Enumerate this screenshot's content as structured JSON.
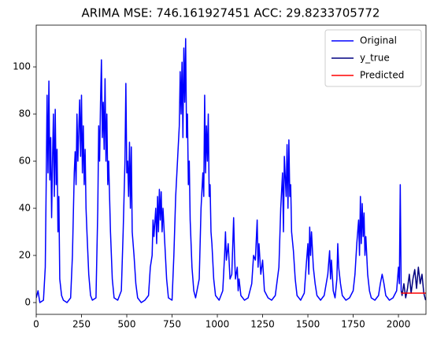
{
  "chart_data": {
    "type": "line",
    "title": "ARIMA MSE: 746.161927451 ACC: 29.8233705772",
    "xlim": [
      0,
      2152
    ],
    "ylim": [
      -5,
      117.7
    ],
    "xticks": [
      0,
      250,
      500,
      750,
      1000,
      1250,
      1500,
      1750,
      2000
    ],
    "yticks": [
      0,
      20,
      40,
      60,
      80,
      100
    ],
    "legend": "upper right",
    "series": [
      {
        "name": "Original",
        "color": "#0000ff",
        "x": [
          0,
          10,
          20,
          40,
          50,
          55,
          60,
          65,
          70,
          75,
          80,
          85,
          90,
          95,
          100,
          105,
          110,
          115,
          120,
          125,
          130,
          140,
          150,
          170,
          190,
          200,
          210,
          215,
          220,
          225,
          230,
          240,
          245,
          250,
          255,
          260,
          265,
          270,
          275,
          280,
          290,
          300,
          310,
          330,
          340,
          345,
          350,
          355,
          360,
          365,
          370,
          375,
          380,
          385,
          390,
          395,
          400,
          410,
          420,
          430,
          450,
          470,
          480,
          490,
          495,
          500,
          505,
          510,
          515,
          520,
          525,
          530,
          540,
          550,
          560,
          580,
          600,
          620,
          630,
          640,
          645,
          650,
          660,
          665,
          670,
          675,
          680,
          685,
          690,
          695,
          700,
          710,
          720,
          730,
          750,
          760,
          770,
          780,
          790,
          795,
          800,
          805,
          810,
          815,
          820,
          825,
          830,
          835,
          840,
          845,
          850,
          860,
          870,
          880,
          900,
          910,
          920,
          925,
          930,
          935,
          940,
          945,
          950,
          955,
          960,
          965,
          970,
          980,
          990,
          1010,
          1030,
          1040,
          1045,
          1050,
          1060,
          1070,
          1080,
          1090,
          1095,
          1100,
          1110,
          1115,
          1120,
          1130,
          1150,
          1170,
          1190,
          1200,
          1210,
          1220,
          1225,
          1230,
          1240,
          1250,
          1260,
          1280,
          1300,
          1320,
          1340,
          1350,
          1360,
          1365,
          1370,
          1380,
          1385,
          1390,
          1395,
          1400,
          1405,
          1410,
          1420,
          1430,
          1440,
          1460,
          1480,
          1490,
          1500,
          1505,
          1510,
          1515,
          1520,
          1530,
          1540,
          1550,
          1570,
          1590,
          1610,
          1620,
          1625,
          1630,
          1640,
          1650,
          1660,
          1665,
          1670,
          1680,
          1690,
          1710,
          1730,
          1750,
          1760,
          1770,
          1780,
          1785,
          1790,
          1795,
          1800,
          1805,
          1810,
          1815,
          1820,
          1830,
          1840,
          1850,
          1870,
          1890,
          1900,
          1910,
          1920,
          1930,
          1950,
          1970,
          1990,
          2000,
          2005,
          2010,
          2015
        ],
        "values": [
          2,
          5,
          0,
          1,
          15,
          50,
          88,
          55,
          94,
          52,
          70,
          36,
          60,
          80,
          45,
          82,
          50,
          65,
          30,
          45,
          10,
          3,
          1,
          0,
          2,
          20,
          55,
          64,
          50,
          80,
          60,
          86,
          62,
          88,
          55,
          75,
          50,
          65,
          40,
          30,
          12,
          3,
          1,
          2,
          40,
          75,
          60,
          85,
          103,
          70,
          85,
          65,
          95,
          60,
          80,
          50,
          60,
          30,
          10,
          2,
          1,
          5,
          30,
          60,
          93,
          55,
          60,
          45,
          68,
          40,
          66,
          30,
          20,
          8,
          2,
          0,
          1,
          3,
          15,
          20,
          35,
          28,
          40,
          25,
          45,
          30,
          48,
          35,
          47,
          30,
          40,
          25,
          10,
          2,
          1,
          20,
          45,
          60,
          75,
          98,
          80,
          102,
          70,
          108,
          85,
          112,
          70,
          80,
          50,
          60,
          35,
          15,
          5,
          2,
          10,
          40,
          55,
          45,
          88,
          55,
          75,
          60,
          80,
          45,
          50,
          30,
          25,
          10,
          3,
          1,
          5,
          20,
          30,
          18,
          25,
          10,
          12,
          36,
          20,
          10,
          15,
          5,
          10,
          3,
          1,
          2,
          8,
          20,
          18,
          35,
          15,
          25,
          12,
          18,
          5,
          2,
          1,
          3,
          15,
          40,
          55,
          30,
          62,
          45,
          67,
          40,
          69,
          45,
          50,
          30,
          22,
          10,
          3,
          1,
          4,
          15,
          25,
          12,
          32,
          20,
          30,
          15,
          8,
          3,
          1,
          3,
          12,
          22,
          10,
          18,
          5,
          2,
          10,
          25,
          15,
          8,
          3,
          1,
          2,
          5,
          12,
          25,
          35,
          20,
          45,
          25,
          42,
          28,
          38,
          20,
          28,
          12,
          5,
          2,
          1,
          3,
          8,
          12,
          8,
          3,
          1,
          2,
          5,
          15,
          8,
          50,
          5
        ]
      },
      {
        "name": "y_true",
        "color": "#000080",
        "x": [
          2015,
          2020,
          2030,
          2040,
          2050,
          2060,
          2070,
          2080,
          2090,
          2100,
          2110,
          2120,
          2130,
          2140,
          2150
        ],
        "values": [
          5,
          3,
          8,
          2,
          6,
          12,
          4,
          10,
          14,
          6,
          15,
          8,
          12,
          4,
          1
        ]
      },
      {
        "name": "Predicted",
        "color": "#ff0000",
        "x": [
          2015,
          2152
        ],
        "values": [
          4,
          4
        ]
      }
    ]
  }
}
